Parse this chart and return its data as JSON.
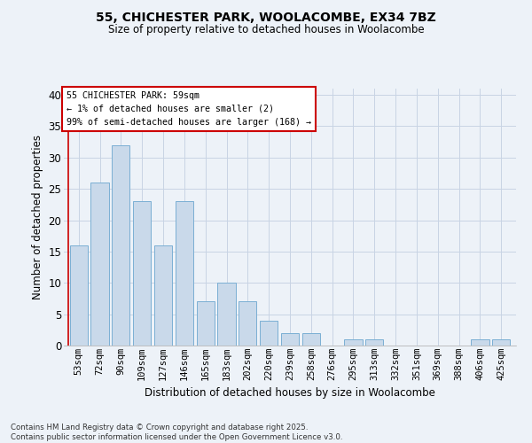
{
  "title1": "55, CHICHESTER PARK, WOOLACOMBE, EX34 7BZ",
  "title2": "Size of property relative to detached houses in Woolacombe",
  "xlabel": "Distribution of detached houses by size in Woolacombe",
  "ylabel": "Number of detached properties",
  "categories": [
    "53sqm",
    "72sqm",
    "90sqm",
    "109sqm",
    "127sqm",
    "146sqm",
    "165sqm",
    "183sqm",
    "202sqm",
    "220sqm",
    "239sqm",
    "258sqm",
    "276sqm",
    "295sqm",
    "313sqm",
    "332sqm",
    "351sqm",
    "369sqm",
    "388sqm",
    "406sqm",
    "425sqm"
  ],
  "values": [
    16,
    26,
    32,
    23,
    16,
    23,
    7,
    10,
    7,
    4,
    2,
    2,
    0,
    1,
    1,
    0,
    0,
    0,
    0,
    1,
    1
  ],
  "bar_color": "#c9d9ea",
  "bar_edge_color": "#7bafd4",
  "annotation_title": "55 CHICHESTER PARK: 59sqm",
  "annotation_line1": "← 1% of detached houses are smaller (2)",
  "annotation_line2": "99% of semi-detached houses are larger (168) →",
  "annotation_box_color": "#ffffff",
  "annotation_box_edge": "#cc0000",
  "vline_color": "#cc0000",
  "ylim": [
    0,
    41
  ],
  "yticks": [
    0,
    5,
    10,
    15,
    20,
    25,
    30,
    35,
    40
  ],
  "grid_color": "#c8d4e4",
  "background_color": "#edf2f8",
  "footer1": "Contains HM Land Registry data © Crown copyright and database right 2025.",
  "footer2": "Contains public sector information licensed under the Open Government Licence v3.0."
}
